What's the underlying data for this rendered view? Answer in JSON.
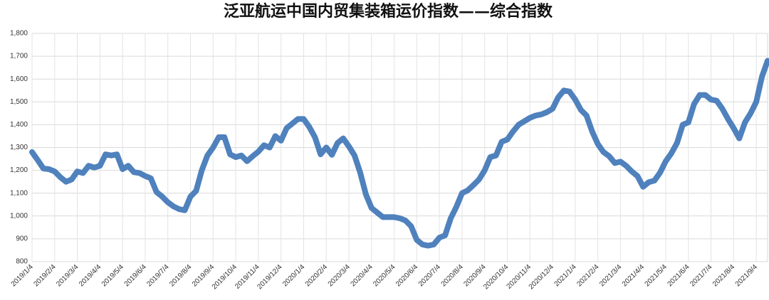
{
  "chart_data": {
    "type": "line",
    "title": "泛亚航运中国内贸集装箱运价指数——综合指数",
    "categories": [
      "2019/1/4",
      null,
      null,
      null,
      "2019/2/4",
      null,
      null,
      null,
      "2019/3/4",
      null,
      null,
      null,
      "2019/4/4",
      null,
      null,
      null,
      "2019/5/4",
      null,
      null,
      null,
      "2019/6/4",
      null,
      null,
      null,
      "2019/7/4",
      null,
      null,
      null,
      "2019/8/4",
      null,
      null,
      null,
      "2019/9/4",
      null,
      null,
      null,
      "2019/10/4",
      null,
      null,
      null,
      "2019/11/4",
      null,
      null,
      null,
      "2019/12/4",
      null,
      null,
      null,
      "2020/1/4",
      null,
      null,
      null,
      "2020/2/4",
      null,
      null,
      null,
      "2020/3/4",
      null,
      null,
      null,
      "2020/4/4",
      null,
      null,
      null,
      "2020/5/4",
      null,
      null,
      null,
      "2020/6/4",
      null,
      null,
      null,
      "2020/7/4",
      null,
      null,
      null,
      "2020/8/4",
      null,
      null,
      null,
      "2020/9/4",
      null,
      null,
      null,
      "2020/10/4",
      null,
      null,
      null,
      "2020/11/4",
      null,
      null,
      null,
      "2020/12/4",
      null,
      null,
      null,
      "2021/1/4",
      null,
      null,
      null,
      "2021/2/4",
      null,
      null,
      null,
      "2021/3/4",
      null,
      null,
      null,
      "2021/4/4",
      null,
      null,
      null,
      "2021/5/4",
      null,
      null,
      null,
      "2021/6/4",
      null,
      null,
      null,
      "2021/7/4",
      null,
      null,
      null,
      "2021/8/4",
      null,
      null,
      null,
      "2021/9/4",
      null,
      null
    ],
    "values": [
      1280,
      1245,
      1208,
      1205,
      1195,
      1170,
      1150,
      1160,
      1195,
      1188,
      1220,
      1212,
      1220,
      1270,
      1265,
      1270,
      1205,
      1220,
      1192,
      1188,
      1175,
      1165,
      1105,
      1085,
      1060,
      1042,
      1030,
      1025,
      1085,
      1110,
      1200,
      1265,
      1300,
      1345,
      1345,
      1270,
      1258,
      1265,
      1240,
      1262,
      1282,
      1310,
      1300,
      1350,
      1330,
      1385,
      1405,
      1425,
      1425,
      1390,
      1345,
      1270,
      1300,
      1268,
      1320,
      1340,
      1305,
      1265,
      1190,
      1095,
      1035,
      1015,
      995,
      995,
      995,
      990,
      980,
      955,
      895,
      875,
      870,
      875,
      905,
      915,
      990,
      1040,
      1100,
      1112,
      1135,
      1160,
      1200,
      1258,
      1265,
      1325,
      1335,
      1370,
      1400,
      1415,
      1430,
      1440,
      1445,
      1455,
      1470,
      1520,
      1550,
      1545,
      1510,
      1465,
      1440,
      1370,
      1315,
      1280,
      1262,
      1232,
      1238,
      1220,
      1195,
      1175,
      1128,
      1148,
      1155,
      1190,
      1240,
      1275,
      1320,
      1400,
      1410,
      1490,
      1530,
      1530,
      1510,
      1505,
      1470,
      1425,
      1385,
      1340,
      1410,
      1450,
      1500,
      1610,
      1680
    ],
    "color": "#4f81bd",
    "ylim": [
      800,
      1800
    ],
    "yticks": [
      {
        "value": 800,
        "label": "800"
      },
      {
        "value": 900,
        "label": "900"
      },
      {
        "value": 1000,
        "label": "1,000"
      },
      {
        "value": 1100,
        "label": "1,100"
      },
      {
        "value": 1200,
        "label": "1,200"
      },
      {
        "value": 1300,
        "label": "1,300"
      },
      {
        "value": 1400,
        "label": "1,400"
      },
      {
        "value": 1500,
        "label": "1,500"
      },
      {
        "value": 1600,
        "label": "1,600"
      },
      {
        "value": 1700,
        "label": "1,700"
      },
      {
        "value": 1800,
        "label": "1,800"
      }
    ],
    "grid": true
  }
}
